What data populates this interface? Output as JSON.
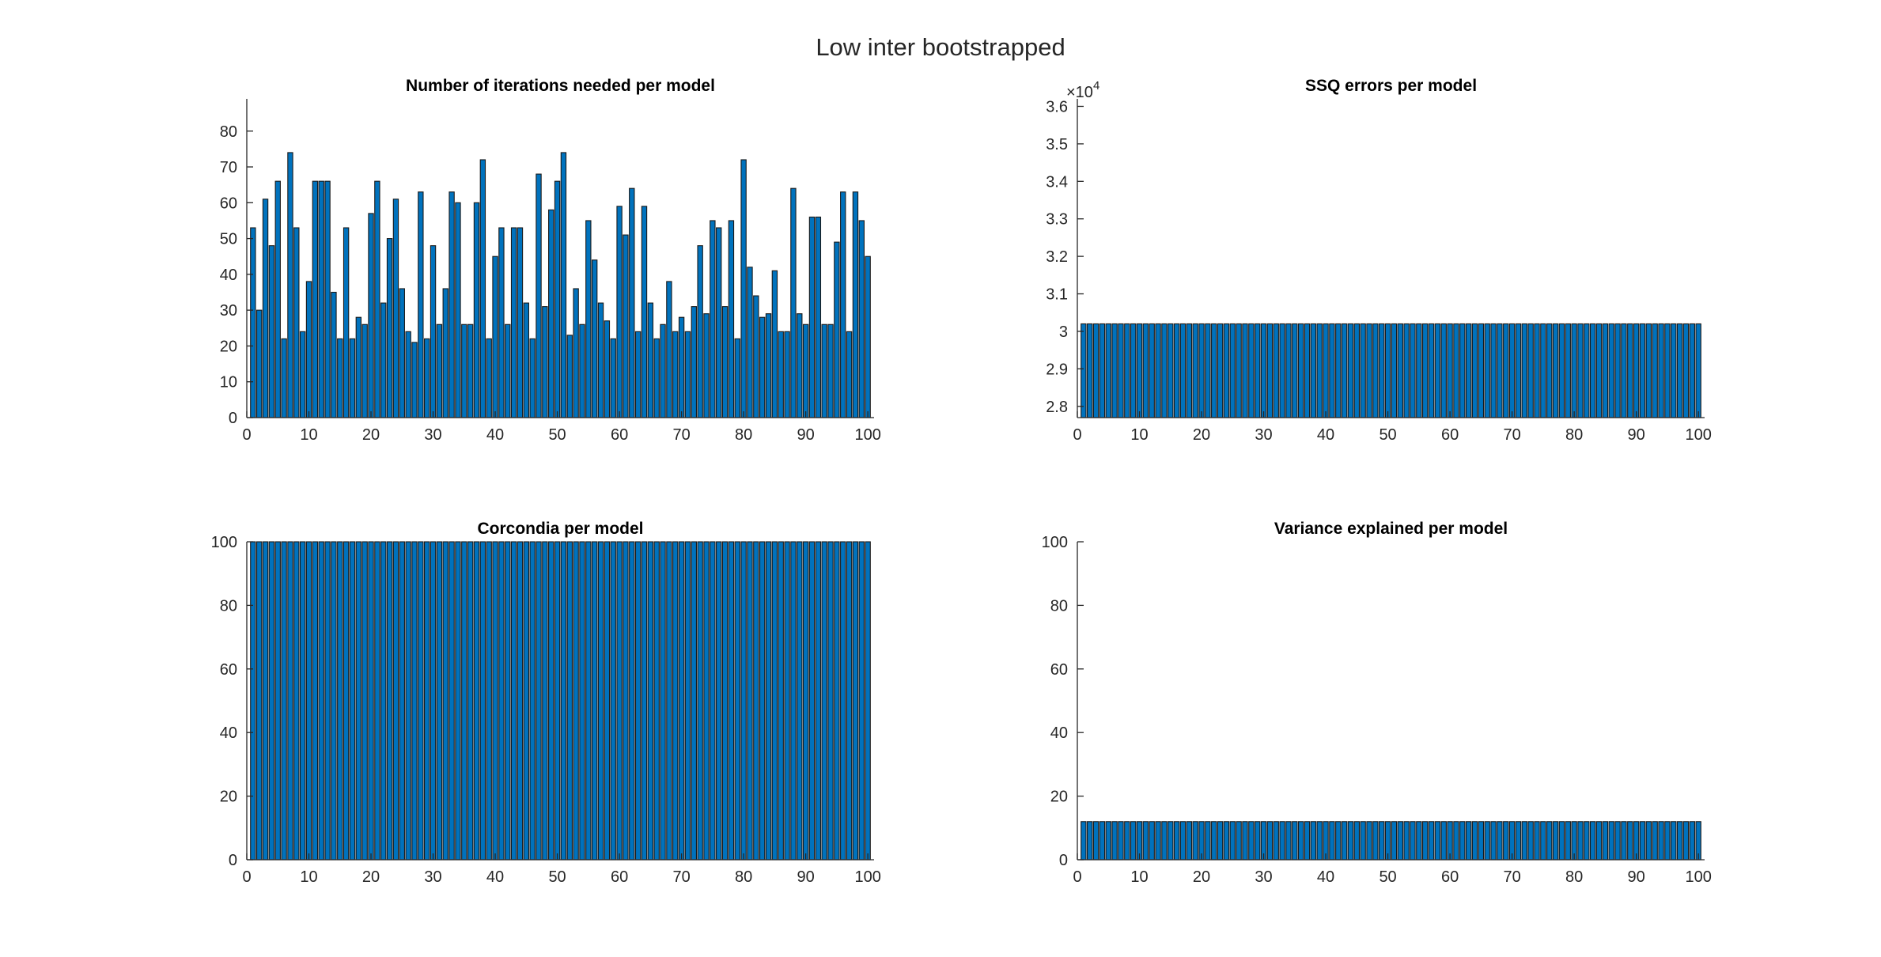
{
  "figure": {
    "title": "Low inter bootstrapped"
  },
  "colors": {
    "bar_fill": "#0072BD",
    "bar_edge": "#1a1a1a",
    "axis": "#262626"
  },
  "chart_data": [
    {
      "type": "bar",
      "title": "Number of iterations needed per model",
      "xlabel": "",
      "ylabel": "",
      "xlim": [
        0,
        101
      ],
      "ylim": [
        0,
        89
      ],
      "xticks": [
        0,
        10,
        20,
        30,
        40,
        50,
        60,
        70,
        80,
        90,
        100
      ],
      "yticks": [
        0,
        10,
        20,
        30,
        40,
        50,
        60,
        70,
        80
      ],
      "y_exponent": "",
      "grid": false,
      "x": [
        1,
        2,
        3,
        4,
        5,
        6,
        7,
        8,
        9,
        10,
        11,
        12,
        13,
        14,
        15,
        16,
        17,
        18,
        19,
        20,
        21,
        22,
        23,
        24,
        25,
        26,
        27,
        28,
        29,
        30,
        31,
        32,
        33,
        34,
        35,
        36,
        37,
        38,
        39,
        40,
        41,
        42,
        43,
        44,
        45,
        46,
        47,
        48,
        49,
        50,
        51,
        52,
        53,
        54,
        55,
        56,
        57,
        58,
        59,
        60,
        61,
        62,
        63,
        64,
        65,
        66,
        67,
        68,
        69,
        70,
        71,
        72,
        73,
        74,
        75,
        76,
        77,
        78,
        79,
        80,
        81,
        82,
        83,
        84,
        85,
        86,
        87,
        88,
        89,
        90,
        91,
        92,
        93,
        94,
        95,
        96,
        97,
        98,
        99,
        100
      ],
      "values": [
        53,
        30,
        61,
        48,
        66,
        22,
        74,
        53,
        24,
        38,
        66,
        66,
        66,
        35,
        22,
        53,
        22,
        28,
        26,
        57,
        66,
        32,
        50,
        61,
        36,
        24,
        21,
        63,
        22,
        48,
        26,
        36,
        63,
        60,
        26,
        26,
        60,
        72,
        22,
        45,
        53,
        26,
        53,
        53,
        32,
        22,
        68,
        31,
        58,
        66,
        74,
        23,
        36,
        26,
        55,
        44,
        32,
        27,
        22,
        59,
        51,
        64,
        24,
        59,
        32,
        22,
        26,
        38,
        24,
        28,
        24,
        31,
        48,
        29,
        55,
        53,
        31,
        55,
        22,
        72,
        42,
        34,
        28,
        29,
        41,
        24,
        24,
        64,
        29,
        26,
        56,
        56,
        26,
        26,
        49,
        63,
        24,
        63,
        55,
        45
      ]
    },
    {
      "type": "bar",
      "title": "SSQ errors per model",
      "xlabel": "",
      "ylabel": "",
      "xlim": [
        0,
        101
      ],
      "ylim": [
        2.77,
        3.62
      ],
      "xticks": [
        0,
        10,
        20,
        30,
        40,
        50,
        60,
        70,
        80,
        90,
        100
      ],
      "yticks": [
        2.8,
        2.9,
        3.0,
        3.1,
        3.2,
        3.3,
        3.4,
        3.5,
        3.6
      ],
      "ytick_labels": [
        "2.8",
        "2.9",
        "3",
        "3.1",
        "3.2",
        "3.3",
        "3.4",
        "3.5",
        "3.6"
      ],
      "y_exponent": "×10",
      "y_exponent_power": "4",
      "grid": false,
      "x_count": 100,
      "constant_value": 3.02
    },
    {
      "type": "bar",
      "title": "Corcondia per model",
      "xlabel": "",
      "ylabel": "",
      "xlim": [
        0,
        101
      ],
      "ylim": [
        0,
        100
      ],
      "xticks": [
        0,
        10,
        20,
        30,
        40,
        50,
        60,
        70,
        80,
        90,
        100
      ],
      "yticks": [
        0,
        20,
        40,
        60,
        80,
        100
      ],
      "y_exponent": "",
      "grid": false,
      "x_count": 100,
      "constant_value": 100
    },
    {
      "type": "bar",
      "title": "Variance explained per model",
      "xlabel": "",
      "ylabel": "",
      "xlim": [
        0,
        101
      ],
      "ylim": [
        0,
        100
      ],
      "xticks": [
        0,
        10,
        20,
        30,
        40,
        50,
        60,
        70,
        80,
        90,
        100
      ],
      "yticks": [
        0,
        20,
        40,
        60,
        80,
        100
      ],
      "y_exponent": "",
      "grid": false,
      "x_count": 100,
      "constant_value": 12
    }
  ]
}
